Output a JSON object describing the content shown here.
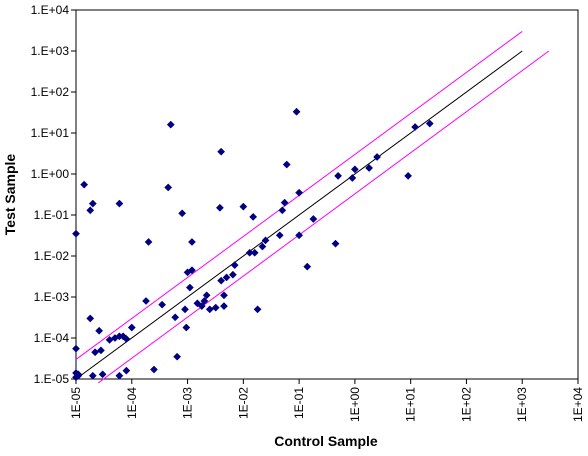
{
  "chart_data": {
    "type": "scatter",
    "title": "",
    "xlabel": "Control Sample",
    "ylabel": "Test Sample",
    "x_scale": "log",
    "y_scale": "log",
    "xlim": [
      1e-05,
      10000.0
    ],
    "ylim": [
      1e-05,
      10000.0
    ],
    "x_tick_labels": [
      "1E-05",
      "1E-04",
      "1E-03",
      "1E-02",
      "1E-01",
      "1E+00",
      "1E+01",
      "1E+02",
      "1E+03",
      "1E+04"
    ],
    "y_tick_labels": [
      "1.E-05",
      "1.E-04",
      "1.E-03",
      "1.E-02",
      "1.E-01",
      "1.E+00",
      "1.E+01",
      "1.E+02",
      "1.E+03",
      "1.E+04"
    ],
    "grid": false,
    "legend": "none",
    "series": [
      {
        "marker": "diamond",
        "color": "#000080",
        "points": [
          {
            "x": 1e-05,
            "y": 0.035
          },
          {
            "x": 1e-05,
            "y": 5.5e-05
          },
          {
            "x": 1e-05,
            "y": 1.4e-05
          },
          {
            "x": 1e-05,
            "y": 1.1e-05
          },
          {
            "x": 1.1e-05,
            "y": 1.3e-05
          },
          {
            "x": 1.1e-05,
            "y": 1.2e-05
          },
          {
            "x": 1.4e-05,
            "y": 0.55
          },
          {
            "x": 1.8e-05,
            "y": 0.13
          },
          {
            "x": 2e-05,
            "y": 0.19
          },
          {
            "x": 2e-05,
            "y": 1.2e-05
          },
          {
            "x": 1.8e-05,
            "y": 0.0003
          },
          {
            "x": 2.2e-05,
            "y": 4.5e-05
          },
          {
            "x": 2.6e-05,
            "y": 0.00015
          },
          {
            "x": 3e-05,
            "y": 1.3e-05
          },
          {
            "x": 2.8e-05,
            "y": 5e-05
          },
          {
            "x": 4e-05,
            "y": 9e-05
          },
          {
            "x": 5e-05,
            "y": 0.0001
          },
          {
            "x": 6e-05,
            "y": 1.2e-05
          },
          {
            "x": 6e-05,
            "y": 0.00011
          },
          {
            "x": 6e-05,
            "y": 0.19
          },
          {
            "x": 7e-05,
            "y": 0.00011
          },
          {
            "x": 8e-05,
            "y": 9.5e-05
          },
          {
            "x": 8e-05,
            "y": 1.6e-05
          },
          {
            "x": 0.0001,
            "y": 0.00018
          },
          {
            "x": 0.00018,
            "y": 0.0008
          },
          {
            "x": 0.0002,
            "y": 0.022
          },
          {
            "x": 0.00025,
            "y": 1.7e-05
          },
          {
            "x": 0.00035,
            "y": 0.00065
          },
          {
            "x": 0.00045,
            "y": 0.47
          },
          {
            "x": 0.0005,
            "y": 16
          },
          {
            "x": 0.0006,
            "y": 0.00032
          },
          {
            "x": 0.00065,
            "y": 3.5e-05
          },
          {
            "x": 0.0008,
            "y": 0.11
          },
          {
            "x": 0.0009,
            "y": 0.0005
          },
          {
            "x": 0.00095,
            "y": 0.00018
          },
          {
            "x": 0.001,
            "y": 0.004
          },
          {
            "x": 0.0011,
            "y": 0.0017
          },
          {
            "x": 0.0012,
            "y": 0.022
          },
          {
            "x": 0.0012,
            "y": 0.0045
          },
          {
            "x": 0.0015,
            "y": 0.0007
          },
          {
            "x": 0.0018,
            "y": 0.0006
          },
          {
            "x": 0.002,
            "y": 0.0008
          },
          {
            "x": 0.0022,
            "y": 0.0011
          },
          {
            "x": 0.0025,
            "y": 0.0005
          },
          {
            "x": 0.0032,
            "y": 0.00055
          },
          {
            "x": 0.0038,
            "y": 0.15
          },
          {
            "x": 0.004,
            "y": 3.5
          },
          {
            "x": 0.004,
            "y": 0.0025
          },
          {
            "x": 0.0045,
            "y": 0.0006
          },
          {
            "x": 0.0045,
            "y": 0.0011
          },
          {
            "x": 0.005,
            "y": 0.003
          },
          {
            "x": 0.0065,
            "y": 0.0035
          },
          {
            "x": 0.007,
            "y": 0.006
          },
          {
            "x": 0.01,
            "y": 0.16
          },
          {
            "x": 0.013,
            "y": 0.012
          },
          {
            "x": 0.015,
            "y": 0.09
          },
          {
            "x": 0.016,
            "y": 0.012
          },
          {
            "x": 0.018,
            "y": 0.0005
          },
          {
            "x": 0.022,
            "y": 0.017
          },
          {
            "x": 0.025,
            "y": 0.024
          },
          {
            "x": 0.045,
            "y": 0.032
          },
          {
            "x": 0.05,
            "y": 0.13
          },
          {
            "x": 0.055,
            "y": 0.2
          },
          {
            "x": 0.06,
            "y": 1.7
          },
          {
            "x": 0.09,
            "y": 33
          },
          {
            "x": 0.1,
            "y": 0.35
          },
          {
            "x": 0.1,
            "y": 0.032
          },
          {
            "x": 0.14,
            "y": 0.0055
          },
          {
            "x": 0.18,
            "y": 0.08
          },
          {
            "x": 0.45,
            "y": 0.02
          },
          {
            "x": 0.5,
            "y": 0.9
          },
          {
            "x": 0.9,
            "y": 0.8
          },
          {
            "x": 1,
            "y": 1.3
          },
          {
            "x": 1.8,
            "y": 1.4
          },
          {
            "x": 2.5,
            "y": 2.6
          },
          {
            "x": 9,
            "y": 0.9
          },
          {
            "x": 12,
            "y": 14
          },
          {
            "x": 22,
            "y": 17
          }
        ]
      }
    ],
    "reference_lines": [
      {
        "color": "#000000",
        "from": [
          1e-05,
          1e-05
        ],
        "to": [
          1000.0,
          1000.0
        ]
      },
      {
        "color": "#FF00FF",
        "from": [
          1e-05,
          3e-05
        ],
        "to": [
          1000.0,
          3000.0
        ]
      },
      {
        "color": "#FF00FF",
        "from": [
          2.5e-05,
          8e-06
        ],
        "to": [
          3000.0,
          1000.0
        ]
      }
    ]
  }
}
